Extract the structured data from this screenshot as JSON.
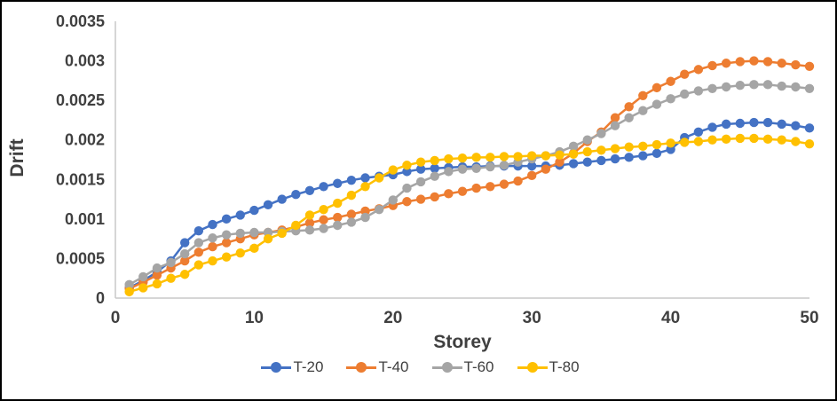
{
  "chart_data": {
    "type": "line",
    "title": "",
    "xlabel": "Storey",
    "ylabel": "Drift",
    "xlim": [
      0,
      50
    ],
    "ylim": [
      0,
      0.0035
    ],
    "x_tick_labels": [
      "0",
      "10",
      "20",
      "30",
      "40",
      "50"
    ],
    "x_tick_values": [
      0,
      10,
      20,
      30,
      40,
      50
    ],
    "y_tick_labels": [
      "0",
      "0.0005",
      "0.001",
      "0.0015",
      "0.002",
      "0.0025",
      "0.003",
      "0.0035"
    ],
    "y_tick_values": [
      0,
      0.0005,
      0.001,
      0.0015,
      0.002,
      0.0025,
      0.003,
      0.0035
    ],
    "grid": false,
    "legend_position": "bottom",
    "marker": "circle",
    "axis_color": "#c9c9c9",
    "text_color": "#404040",
    "x": [
      1,
      2,
      3,
      4,
      5,
      6,
      7,
      8,
      9,
      10,
      11,
      12,
      13,
      14,
      15,
      16,
      17,
      18,
      19,
      20,
      21,
      22,
      23,
      24,
      25,
      26,
      27,
      28,
      29,
      30,
      31,
      32,
      33,
      34,
      35,
      36,
      37,
      38,
      39,
      40,
      41,
      42,
      43,
      44,
      45,
      46,
      47,
      48,
      49,
      50
    ],
    "series": [
      {
        "name": "T-20",
        "color": "#4472C4",
        "values": [
          0.00013,
          0.00022,
          0.00033,
          0.00047,
          0.0007,
          0.00085,
          0.00093,
          0.001,
          0.00105,
          0.00111,
          0.00118,
          0.00125,
          0.00131,
          0.00136,
          0.00141,
          0.00145,
          0.00149,
          0.00152,
          0.00154,
          0.00156,
          0.0016,
          0.00163,
          0.00164,
          0.00165,
          0.00166,
          0.00166,
          0.00167,
          0.00167,
          0.00167,
          0.00167,
          0.00167,
          0.00168,
          0.0017,
          0.00172,
          0.00174,
          0.00176,
          0.00178,
          0.0018,
          0.00183,
          0.00188,
          0.00203,
          0.0021,
          0.00216,
          0.0022,
          0.00221,
          0.00222,
          0.00222,
          0.0022,
          0.00218,
          0.00215
        ]
      },
      {
        "name": "T-40",
        "color": "#ED7D31",
        "values": [
          0.00012,
          0.0002,
          0.00029,
          0.00038,
          0.00047,
          0.00058,
          0.00065,
          0.0007,
          0.00075,
          0.0008,
          0.00083,
          0.00086,
          0.0009,
          0.00095,
          0.00099,
          0.00102,
          0.00106,
          0.0011,
          0.00113,
          0.00117,
          0.00122,
          0.00125,
          0.00128,
          0.00132,
          0.00135,
          0.00139,
          0.00141,
          0.00144,
          0.00148,
          0.00155,
          0.00163,
          0.00172,
          0.00183,
          0.00198,
          0.0021,
          0.00228,
          0.00242,
          0.00256,
          0.00266,
          0.00274,
          0.00283,
          0.00289,
          0.00294,
          0.00297,
          0.00299,
          0.003,
          0.00299,
          0.00297,
          0.00295,
          0.00293
        ]
      },
      {
        "name": "T-60",
        "color": "#A5A5A5",
        "values": [
          0.00017,
          0.00027,
          0.00038,
          0.00045,
          0.00056,
          0.0007,
          0.00076,
          0.0008,
          0.00082,
          0.00083,
          0.00083,
          0.00084,
          0.00085,
          0.00086,
          0.00088,
          0.00092,
          0.00096,
          0.00102,
          0.00112,
          0.00124,
          0.00139,
          0.00147,
          0.00154,
          0.0016,
          0.00163,
          0.00164,
          0.00166,
          0.00168,
          0.00172,
          0.00176,
          0.0018,
          0.00185,
          0.00192,
          0.002,
          0.00208,
          0.00218,
          0.00228,
          0.00237,
          0.00245,
          0.00252,
          0.00258,
          0.00262,
          0.00265,
          0.00267,
          0.00269,
          0.0027,
          0.0027,
          0.00268,
          0.00267,
          0.00265
        ]
      },
      {
        "name": "T-80",
        "color": "#FFC000",
        "values": [
          8e-05,
          0.00013,
          0.00018,
          0.00025,
          0.0003,
          0.00042,
          0.00047,
          0.00052,
          0.00057,
          0.00063,
          0.00075,
          0.00082,
          0.00092,
          0.00105,
          0.00112,
          0.0012,
          0.0013,
          0.00141,
          0.00152,
          0.00162,
          0.00168,
          0.00172,
          0.00174,
          0.00176,
          0.00177,
          0.00178,
          0.00178,
          0.00179,
          0.00179,
          0.0018,
          0.0018,
          0.00181,
          0.00182,
          0.00185,
          0.00187,
          0.00189,
          0.00191,
          0.00192,
          0.00194,
          0.00196,
          0.00197,
          0.00198,
          0.002,
          0.00201,
          0.00202,
          0.00202,
          0.00201,
          0.002,
          0.00198,
          0.00195
        ]
      }
    ]
  }
}
